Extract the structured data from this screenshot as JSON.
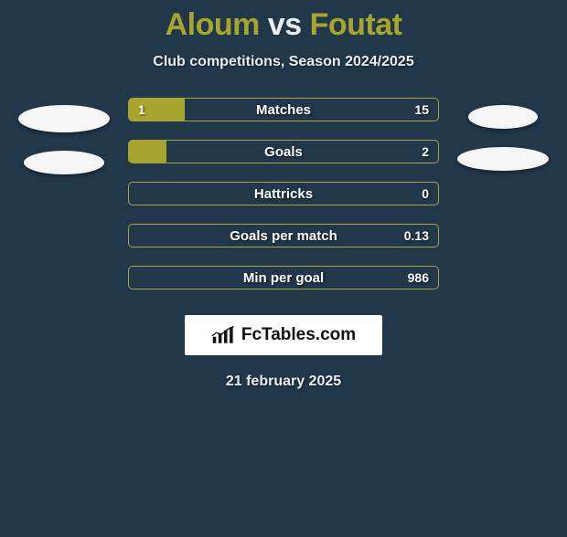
{
  "background_color": "#21374a",
  "title": {
    "player1": "Aloum",
    "vs": "vs",
    "player2": "Foutat",
    "color_players": "#a6a52c",
    "color_vs": "#e8eef3",
    "fontsize": 34
  },
  "subtitle": {
    "text": "Club competitions, Season 2024/2025",
    "color": "#e8eef3",
    "fontsize": 16
  },
  "bar_style": {
    "height": 26,
    "border_color": "#a6a540",
    "fill_color": "#a7a52b",
    "track_color": "#21374a",
    "border_radius": 5,
    "gap": 20,
    "label_color": "#ffffff",
    "label_fontsize": 15,
    "value_fontsize": 14
  },
  "rows": [
    {
      "label": "Matches",
      "left": "1",
      "right": "15",
      "left_pct": 18,
      "right_pct": 0
    },
    {
      "label": "Goals",
      "left": "",
      "right": "2",
      "left_pct": 12,
      "right_pct": 0
    },
    {
      "label": "Hattricks",
      "left": "",
      "right": "0",
      "left_pct": 0,
      "right_pct": 0
    },
    {
      "label": "Goals per match",
      "left": "",
      "right": "0.13",
      "left_pct": 0,
      "right_pct": 0
    },
    {
      "label": "Min per goal",
      "left": "",
      "right": "986",
      "left_pct": 0,
      "right_pct": 0
    }
  ],
  "logo": {
    "text": "FcTables.com",
    "bg_color": "#ffffff",
    "text_color": "#111111",
    "fontsize": 19
  },
  "date": {
    "text": "21 february 2025",
    "color": "#e8eef3",
    "fontsize": 16
  },
  "avatars": {
    "color": "#f5f5f5"
  }
}
